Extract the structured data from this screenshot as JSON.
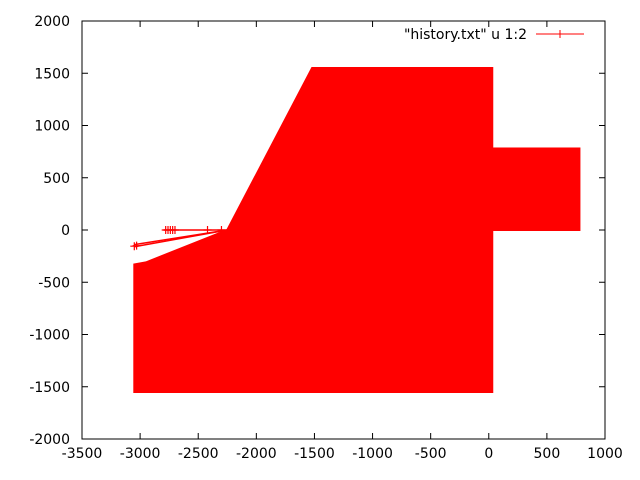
{
  "chart_data": {
    "type": "line",
    "title": "",
    "xlabel": "",
    "ylabel": "",
    "xlim": [
      -3500,
      1000
    ],
    "ylim": [
      -2000,
      2000
    ],
    "x_ticks": [
      -3500,
      -3000,
      -2500,
      -2000,
      -1500,
      -1000,
      -500,
      0,
      500,
      1000
    ],
    "y_ticks": [
      -2000,
      -1500,
      -1000,
      -500,
      0,
      500,
      1000,
      1500,
      2000
    ],
    "grid": false,
    "legend_position": "top-right",
    "series": [
      {
        "name": "\"history.txt\" u 1:2",
        "color": "#ff0000",
        "marker": "plus",
        "regions": [
          {
            "shape": "polygon",
            "points": [
              [
                -3050,
                -1550
              ],
              [
                -3050,
                -330
              ],
              [
                -2950,
                -310
              ],
              [
                -2250,
                0
              ],
              [
                -1520,
                1550
              ],
              [
                30,
                1550
              ],
              [
                30,
                -1550
              ]
            ]
          },
          {
            "shape": "rect",
            "x0": 30,
            "x1": 780,
            "y0": 0,
            "y1": 780
          }
        ],
        "paths": [
          [
            [
              -3050,
              -160
            ],
            [
              -2250,
              0
            ]
          ],
          [
            [
              -3050,
              -140
            ],
            [
              -2250,
              0
            ]
          ],
          [
            [
              -2800,
              0
            ],
            [
              -2250,
              0
            ]
          ]
        ],
        "markers": [
          [
            -3050,
            -155
          ],
          [
            -3030,
            -150
          ],
          [
            -2780,
            0
          ],
          [
            -2760,
            0
          ],
          [
            -2740,
            0
          ],
          [
            -2720,
            0
          ],
          [
            -2700,
            0
          ],
          [
            -2420,
            0
          ],
          [
            -2300,
            0
          ]
        ]
      }
    ]
  }
}
